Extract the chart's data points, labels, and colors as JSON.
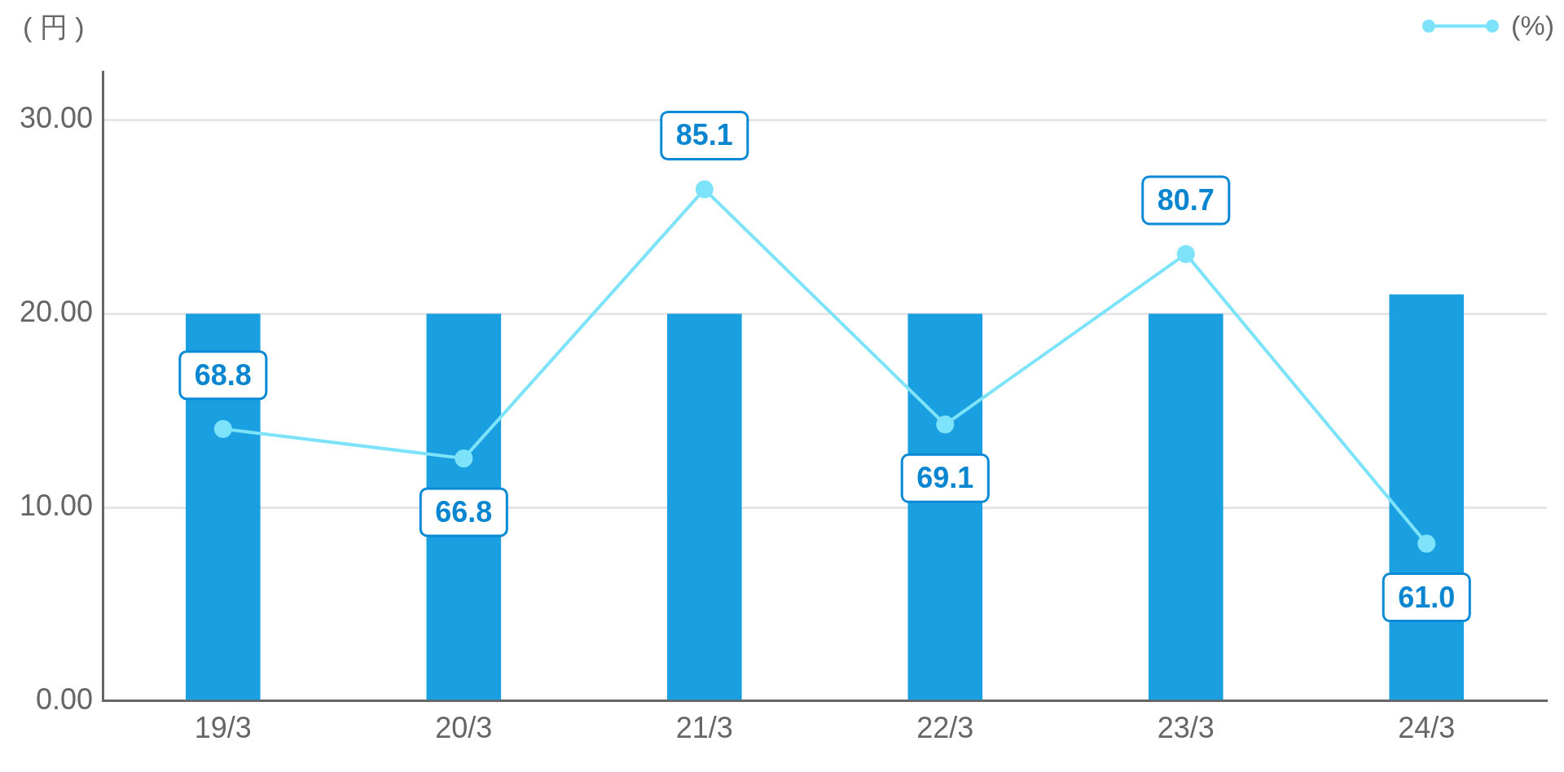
{
  "chart_data": {
    "type": "bar",
    "ylabel": "( 円 )",
    "categories": [
      "19/3",
      "20/3",
      "21/3",
      "22/3",
      "23/3",
      "24/3"
    ],
    "series": [
      {
        "color": "#1a9fe0",
        "values": [
          20,
          20,
          20,
          20,
          20,
          21
        ]
      },
      {
        "type": "line",
        "name": "(%)",
        "axis": "y2",
        "color": "#7de3fb",
        "values": [
          68.8,
          66.8,
          85.1,
          69.1,
          80.7,
          61.0
        ],
        "value_labels": [
          "68.8",
          "66.8",
          "85.1",
          "69.1",
          "80.7",
          "61.0"
        ]
      }
    ],
    "ylim": [
      0,
      32.5
    ],
    "yticks": [
      {
        "value": 0,
        "label": "0.00"
      },
      {
        "value": 10,
        "label": "10.00"
      },
      {
        "value": 20,
        "label": "20.00"
      },
      {
        "value": 30,
        "label": "30.00"
      }
    ],
    "y2lim": [
      50.3,
      93.1
    ],
    "tick_labels": "xy",
    "grid": "y",
    "legend": "top right",
    "marker": "circle",
    "line_style": "solid"
  }
}
